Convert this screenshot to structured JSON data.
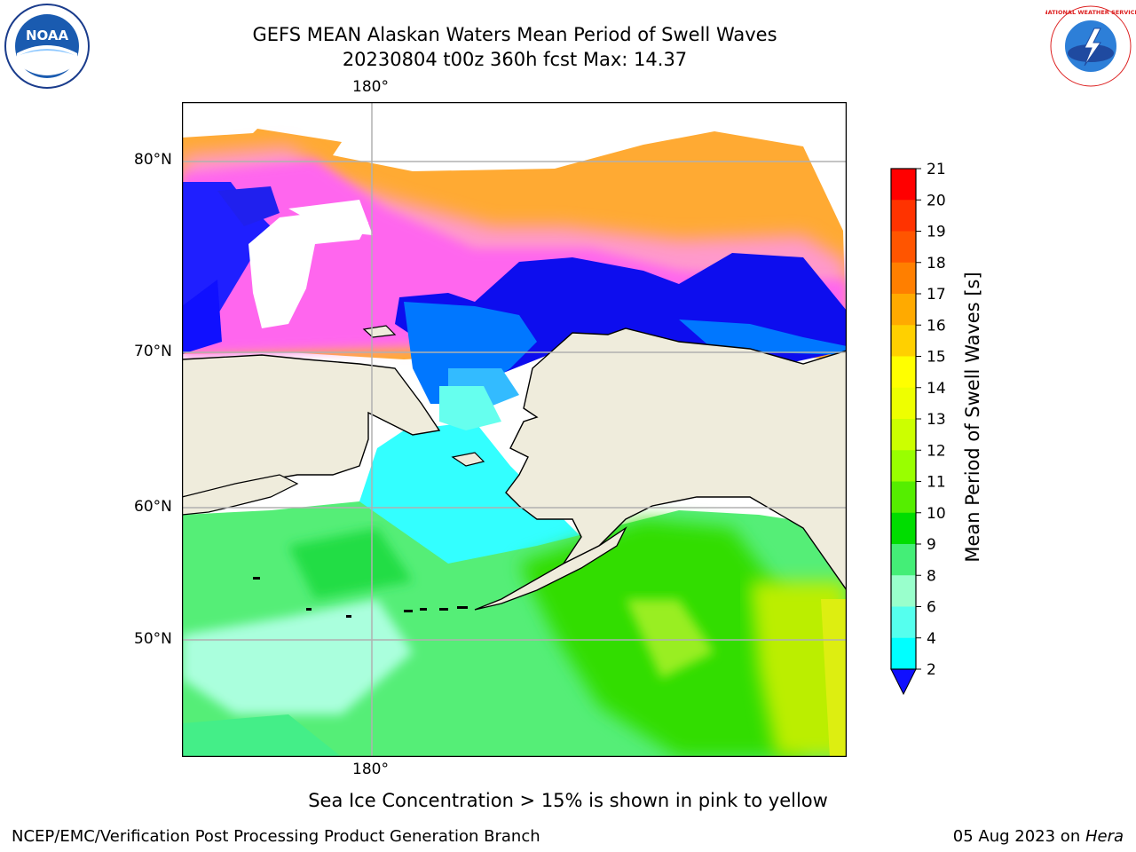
{
  "header": {
    "title_line1": "GEFS MEAN Alaskan Waters Mean Period of Swell Waves",
    "title_line2": "20230804 t00z 360h fcst   Max: 14.37"
  },
  "logos": {
    "left": "NOAA",
    "right": "NATIONAL WEATHER SERVICE"
  },
  "map": {
    "lon_labels": [
      "180°",
      "180°"
    ],
    "lat_labels": [
      "80°N",
      "70°N",
      "60°N",
      "50°N"
    ],
    "colors": {
      "land": "#efecdc",
      "ocean_low": "#0080ff",
      "ice": "#ff66ff"
    }
  },
  "colorbar": {
    "label": "Mean Period of Swell Waves [s]",
    "ticks": [
      "21",
      "20",
      "19",
      "18",
      "17",
      "16",
      "15",
      "14",
      "13",
      "12",
      "11",
      "10",
      "9",
      "8",
      "6",
      "4",
      "2"
    ],
    "colors": [
      "#ff0000",
      "#ff3300",
      "#ff5500",
      "#ff7f00",
      "#ffaa00",
      "#ffd000",
      "#ffff00",
      "#eeff00",
      "#ccff00",
      "#99ff00",
      "#55ee00",
      "#00dd00",
      "#44ee77",
      "#99ffcc",
      "#55ffee",
      "#00ffff",
      "#0077ff"
    ],
    "under_color": "#1010ff"
  },
  "note": "Sea Ice Concentration > 15% is shown in pink to yellow",
  "footer": {
    "left": "NCEP/EMC/Verification Post Processing Product Generation Branch",
    "right_prefix": "05 Aug 2023 on ",
    "right_machine": "Hera"
  }
}
